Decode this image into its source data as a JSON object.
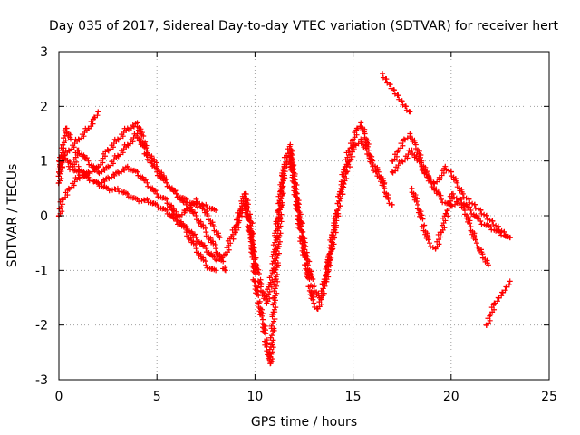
{
  "chart_data": {
    "type": "scatter",
    "title": "Day 035 of 2017, Sidereal Day-to-day VTEC variation (SDTVAR) for receiver hert",
    "xlabel": "GPS time / hours",
    "ylabel": "SDTVAR / TECUs",
    "xlim": [
      0,
      25
    ],
    "ylim": [
      -3,
      3
    ],
    "xticks": [
      0,
      5,
      10,
      15,
      20,
      25
    ],
    "yticks": [
      -3,
      -2,
      -1,
      0,
      1,
      2,
      3
    ],
    "grid": true,
    "marker": "+",
    "series_color": "#ff0000",
    "series": [
      {
        "name": "trace-1",
        "x": [
          0.0,
          0.3,
          0.7,
          1.0,
          1.5,
          2.0,
          2.5,
          3.0,
          3.5,
          4.0,
          4.5,
          5.0,
          5.5,
          6.0,
          6.5,
          7.0,
          7.5,
          8.0
        ],
        "y": [
          0.8,
          1.1,
          0.9,
          1.2,
          1.0,
          0.8,
          0.9,
          1.1,
          1.3,
          1.5,
          1.1,
          0.8,
          0.6,
          0.4,
          0.3,
          0.2,
          0.2,
          0.1
        ]
      },
      {
        "name": "trace-2",
        "x": [
          0.0,
          0.5,
          1.0,
          1.5,
          1.8,
          2.0
        ],
        "y": [
          1.0,
          1.2,
          1.4,
          1.6,
          1.8,
          1.9
        ]
      },
      {
        "name": "trace-3",
        "x": [
          0.0,
          0.2,
          0.4,
          0.6
        ],
        "y": [
          0.6,
          1.3,
          1.6,
          1.4
        ]
      },
      {
        "name": "trace-4",
        "x": [
          0.0,
          0.2,
          0.5,
          1.0,
          1.5,
          2.0,
          2.5,
          3.0,
          3.5,
          4.0,
          4.5,
          5.0,
          5.5,
          6.0,
          6.5,
          7.0,
          7.5,
          8.0,
          8.5
        ],
        "y": [
          0.0,
          0.3,
          0.5,
          0.7,
          0.8,
          0.9,
          1.2,
          1.4,
          1.6,
          1.7,
          1.2,
          0.9,
          0.6,
          0.4,
          0.2,
          0.0,
          -0.3,
          -0.6,
          -1.0
        ]
      },
      {
        "name": "trace-5",
        "x": [
          0.5,
          1.0,
          1.5,
          2.0,
          2.5,
          3.0,
          3.5,
          4.0,
          4.5,
          5.0,
          5.5,
          6.0,
          6.5,
          7.0,
          7.5,
          8.0,
          8.5,
          9.0,
          9.5
        ],
        "y": [
          0.9,
          0.8,
          0.7,
          0.6,
          0.5,
          0.5,
          0.4,
          0.3,
          0.3,
          0.2,
          0.1,
          -0.1,
          -0.2,
          -0.4,
          -0.6,
          -0.8,
          -0.7,
          -0.2,
          0.4
        ]
      },
      {
        "name": "trace-6",
        "x": [
          1.0,
          1.5,
          2.0,
          2.5,
          3.0,
          3.5,
          4.0,
          4.5,
          5.0,
          5.5,
          6.0,
          6.5,
          7.0,
          7.5,
          8.0
        ],
        "y": [
          0.9,
          0.7,
          0.6,
          0.7,
          0.8,
          0.9,
          0.8,
          0.6,
          0.4,
          0.3,
          0.0,
          -0.3,
          -0.6,
          -0.9,
          -1.0
        ]
      },
      {
        "name": "trace-7",
        "x": [
          9.0,
          9.3,
          9.5,
          9.8,
          10.0,
          10.2,
          10.4,
          10.6,
          10.8,
          11.0,
          11.2,
          11.4,
          11.6,
          11.8,
          12.0,
          12.2,
          12.4,
          12.6,
          12.8,
          13.0,
          13.2,
          13.4,
          13.6,
          13.8,
          14.0,
          14.2,
          14.4,
          14.6,
          14.8,
          15.0,
          15.2,
          15.4,
          15.6,
          15.8,
          16.0,
          16.2,
          16.4,
          16.6,
          16.8,
          17.0
        ],
        "y": [
          -0.3,
          0.1,
          0.4,
          -0.2,
          -1.2,
          -1.6,
          -1.9,
          -2.4,
          -2.7,
          -1.5,
          -0.4,
          0.6,
          1.1,
          1.3,
          0.6,
          0.0,
          -0.5,
          -0.9,
          -1.3,
          -1.6,
          -1.7,
          -1.5,
          -1.1,
          -0.7,
          -0.3,
          0.1,
          0.5,
          0.9,
          1.2,
          1.4,
          1.6,
          1.7,
          1.5,
          1.2,
          0.9,
          0.8,
          0.7,
          0.5,
          0.3,
          0.2
        ]
      },
      {
        "name": "trace-8",
        "x": [
          9.5,
          9.8,
          10.0,
          10.3,
          10.6,
          10.9,
          11.2,
          11.5,
          11.8,
          12.1,
          12.4,
          12.7,
          13.0,
          13.3,
          13.6,
          13.9,
          14.2,
          14.5,
          14.8,
          15.1,
          15.4,
          15.7,
          16.0,
          16.3,
          16.6
        ],
        "y": [
          0.2,
          -0.4,
          -0.8,
          -1.3,
          -1.6,
          -1.0,
          0.1,
          0.9,
          1.1,
          0.4,
          -0.3,
          -0.9,
          -1.3,
          -1.5,
          -1.2,
          -0.6,
          0.1,
          0.6,
          1.0,
          1.3,
          1.4,
          1.2,
          1.0,
          0.8,
          0.6
        ]
      },
      {
        "name": "trace-9",
        "x": [
          16.5,
          16.7,
          16.9,
          17.1,
          17.3,
          17.5,
          17.7,
          17.9
        ],
        "y": [
          2.6,
          2.5,
          2.4,
          2.3,
          2.2,
          2.1,
          2.0,
          1.9
        ]
      },
      {
        "name": "trace-10",
        "x": [
          17.0,
          17.3,
          17.6,
          17.9,
          18.2,
          18.5,
          18.8,
          19.1,
          19.4,
          19.7,
          20.0,
          20.3,
          20.6,
          20.9,
          21.2,
          21.5,
          21.8,
          22.1,
          22.4,
          22.7,
          23.0
        ],
        "y": [
          1.0,
          1.2,
          1.4,
          1.5,
          1.3,
          1.0,
          0.7,
          0.6,
          0.7,
          0.9,
          0.8,
          0.6,
          0.4,
          0.3,
          0.2,
          0.1,
          0.0,
          -0.1,
          -0.2,
          -0.3,
          -0.4
        ]
      },
      {
        "name": "trace-11",
        "x": [
          18.0,
          18.3,
          18.6,
          18.9,
          19.2,
          19.5,
          19.8,
          20.1,
          20.4,
          20.7,
          21.0,
          21.3,
          21.6,
          21.9
        ],
        "y": [
          0.5,
          0.2,
          -0.2,
          -0.5,
          -0.6,
          -0.3,
          0.1,
          0.4,
          0.3,
          0.1,
          -0.2,
          -0.5,
          -0.7,
          -0.9
        ]
      },
      {
        "name": "trace-12",
        "x": [
          17.0,
          17.5,
          18.0,
          18.5,
          19.0,
          19.5,
          20.0,
          20.5,
          21.0,
          21.5,
          22.0,
          22.5,
          23.0
        ],
        "y": [
          0.8,
          1.0,
          1.2,
          0.9,
          0.6,
          0.3,
          0.2,
          0.3,
          0.1,
          -0.1,
          -0.2,
          -0.3,
          -0.4
        ]
      },
      {
        "name": "trace-13",
        "x": [
          21.8,
          22.0,
          22.2,
          22.4,
          22.6,
          22.8,
          23.0
        ],
        "y": [
          -2.0,
          -1.8,
          -1.6,
          -1.5,
          -1.4,
          -1.3,
          -1.2
        ]
      },
      {
        "name": "trace-14",
        "x": [
          5.5,
          5.8,
          6.1,
          6.4,
          6.7,
          7.0,
          7.3,
          7.6,
          7.9,
          8.2
        ],
        "y": [
          0.3,
          0.1,
          0.0,
          0.1,
          0.2,
          0.3,
          0.2,
          0.0,
          -0.2,
          -0.4
        ]
      }
    ]
  }
}
